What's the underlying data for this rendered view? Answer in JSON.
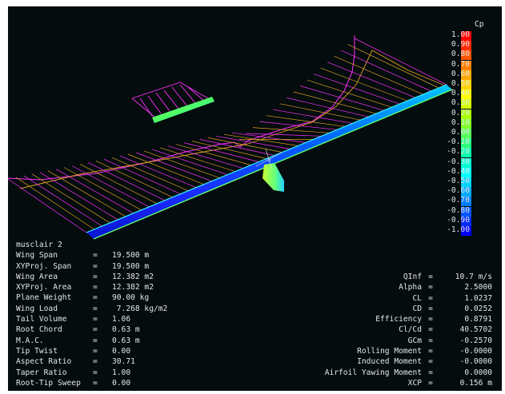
{
  "plane_name": "musclair 2",
  "cp_legend": {
    "title": "Cp",
    "entries": [
      {
        "label": "1.00",
        "color": "#ff0000"
      },
      {
        "label": "0.90",
        "color": "#ff2a00"
      },
      {
        "label": "0.80",
        "color": "#ff5500"
      },
      {
        "label": "0.70",
        "color": "#ff7f00"
      },
      {
        "label": "0.60",
        "color": "#ffaa00"
      },
      {
        "label": "0.50",
        "color": "#ffd400"
      },
      {
        "label": "0.40",
        "color": "#ffff00"
      },
      {
        "label": "0.30",
        "color": "#d4ff00"
      },
      {
        "label": "0.20",
        "color": "#aaff00"
      },
      {
        "label": "0.10",
        "color": "#7fff2a"
      },
      {
        "label": "0.00",
        "color": "#55ff55"
      },
      {
        "label": "-0.10",
        "color": "#2aff7f"
      },
      {
        "label": "-0.20",
        "color": "#00ffaa"
      },
      {
        "label": "-0.30",
        "color": "#00ffd4"
      },
      {
        "label": "-0.40",
        "color": "#00ffff"
      },
      {
        "label": "-0.50",
        "color": "#00d4ff"
      },
      {
        "label": "-0.60",
        "color": "#00aaff"
      },
      {
        "label": "-0.70",
        "color": "#007fff"
      },
      {
        "label": "-0.80",
        "color": "#0055ff"
      },
      {
        "label": "-0.90",
        "color": "#002aff"
      },
      {
        "label": "-1.00",
        "color": "#0000ff"
      }
    ]
  },
  "left_stats": [
    {
      "label": "Wing Span",
      "value": "19.500 m"
    },
    {
      "label": "XYProj. Span",
      "value": "19.500 m"
    },
    {
      "label": "Wing Area",
      "value": "12.382 m2"
    },
    {
      "label": "XYProj. Area",
      "value": "12.382 m2"
    },
    {
      "label": "Plane Weight",
      "value": "90.00 kg"
    },
    {
      "label": "Wing Load",
      "value": " 7.268 kg/m2"
    },
    {
      "label": "Tail Volume",
      "value": "1.06"
    },
    {
      "label": "Root Chord",
      "value": "0.63 m"
    },
    {
      "label": "M.A.C.",
      "value": "0.63 m"
    },
    {
      "label": "Tip Twist",
      "value": "0.00"
    },
    {
      "label": "Aspect Ratio",
      "value": "30.71"
    },
    {
      "label": "Taper Ratio",
      "value": "1.00"
    },
    {
      "label": "Root-Tip Sweep",
      "value": "0.00"
    }
  ],
  "right_stats": [
    {
      "label": "QInf",
      "value": "10.7 m/s"
    },
    {
      "label": "Alpha",
      "value": "2.5000"
    },
    {
      "label": "CL",
      "value": "1.0237"
    },
    {
      "label": "CD",
      "value": "0.0252"
    },
    {
      "label": "Efficiency",
      "value": "0.8791"
    },
    {
      "label": "Cl/Cd",
      "value": "40.5702"
    },
    {
      "label": "GCm",
      "value": "-0.2570"
    },
    {
      "label": "Rolling Moment",
      "value": "-0.0000"
    },
    {
      "label": "Induced Moment",
      "value": "-0.0000"
    },
    {
      "label": "Airfoil Yawing Moment",
      "value": "0.0000"
    },
    {
      "label": "XCP",
      "value": "0.156 m"
    }
  ]
}
